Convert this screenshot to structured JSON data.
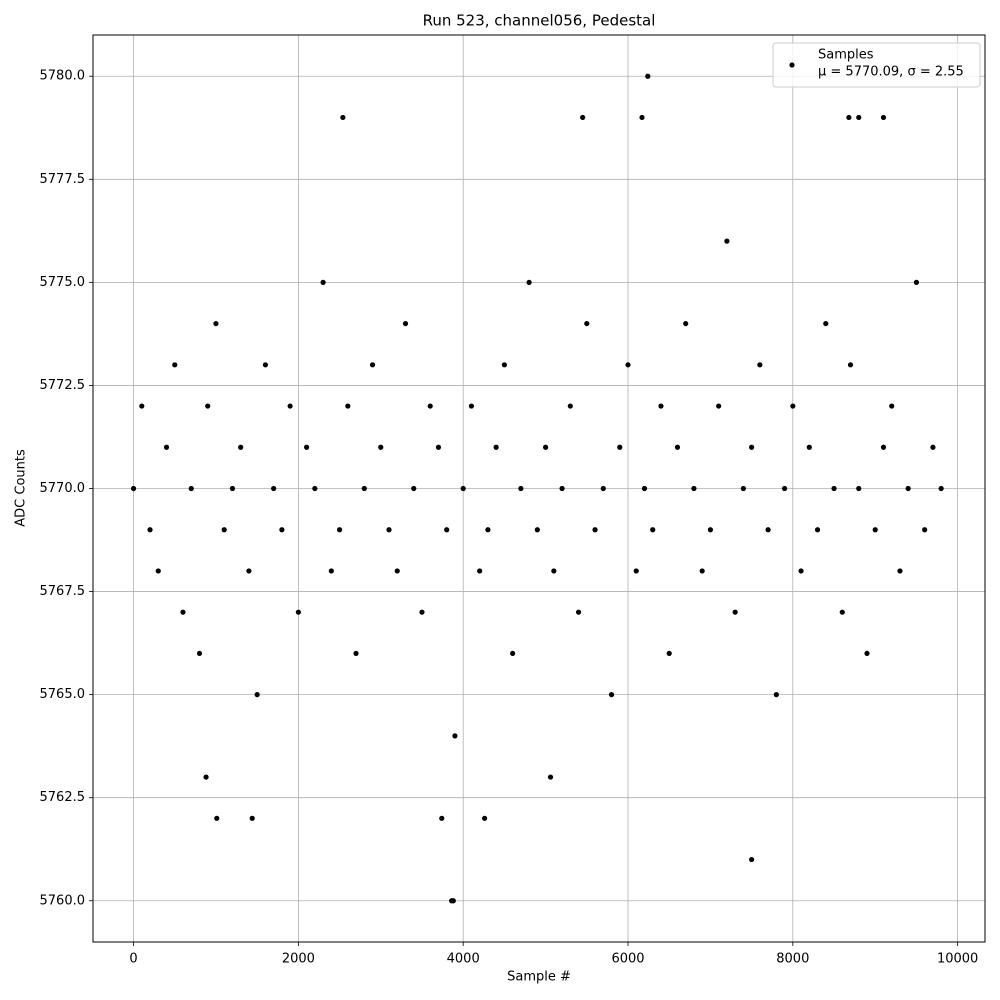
{
  "chart_data": {
    "type": "scatter",
    "title": "Run 523, channel056, Pedestal",
    "x_label": "Sample #",
    "y_label": "ADC Counts",
    "xlim": [
      -492,
      10332
    ],
    "ylim": [
      5759,
      5781
    ],
    "xticks": [
      0,
      2000,
      4000,
      6000,
      8000,
      10000
    ],
    "yticks": [
      {
        "value": 5760,
        "label": "5760.0"
      },
      {
        "value": 5762.5,
        "label": "5762.5"
      },
      {
        "value": 5765,
        "label": "5765.0"
      },
      {
        "value": 5767.5,
        "label": "5767.5"
      },
      {
        "value": 5770,
        "label": "5770.0"
      },
      {
        "value": 5772.5,
        "label": "5772.5"
      },
      {
        "value": 5775,
        "label": "5775.0"
      },
      {
        "value": 5777.5,
        "label": "5777.5"
      },
      {
        "value": 5780,
        "label": "5780.0"
      }
    ],
    "grid": true,
    "legend_position": "upper right",
    "legend_note": "μ = 5770.09, σ = 2.55",
    "series": [
      {
        "name": "Samples",
        "color": "#000000",
        "x": [
          0,
          100,
          200,
          300,
          400,
          500,
          600,
          700,
          800,
          900,
          1000,
          1100,
          1200,
          1300,
          1400,
          1500,
          1600,
          1700,
          1800,
          1900,
          2000,
          2100,
          2200,
          2300,
          2400,
          2500,
          2600,
          2700,
          2800,
          2900,
          3000,
          3100,
          3200,
          3300,
          3400,
          3500,
          3600,
          3700,
          3800,
          3900,
          4000,
          4100,
          4200,
          4300,
          4400,
          4500,
          4600,
          4700,
          4800,
          4900,
          5000,
          5100,
          5200,
          5300,
          5400,
          5500,
          5600,
          5700,
          5800,
          5900,
          6000,
          6100,
          6200,
          6300,
          6400,
          6500,
          6600,
          6700,
          6800,
          6900,
          7000,
          7100,
          7200,
          7300,
          7400,
          7500,
          7600,
          7700,
          7800,
          7900,
          8000,
          8100,
          8200,
          8300,
          8400,
          8500,
          8600,
          8700,
          8800,
          8900,
          9000,
          9100,
          9200,
          9300,
          9400,
          9500,
          9600,
          9700,
          9800,
          6240,
          2540,
          5450,
          6170,
          8680,
          8800,
          9100,
          3860,
          3880,
          7500,
          1010,
          1440,
          3740,
          4260,
          880,
          5060
        ],
        "values": [
          5770,
          5772,
          5769,
          5768,
          5771,
          5773,
          5767,
          5770,
          5766,
          5772,
          5774,
          5769,
          5770,
          5771,
          5768,
          5765,
          5773,
          5770,
          5769,
          5772,
          5767,
          5771,
          5770,
          5775,
          5768,
          5769,
          5772,
          5766,
          5770,
          5773,
          5771,
          5769,
          5768,
          5774,
          5770,
          5767,
          5772,
          5771,
          5769,
          5764,
          5770,
          5772,
          5768,
          5769,
          5771,
          5773,
          5766,
          5770,
          5775,
          5769,
          5771,
          5768,
          5770,
          5772,
          5767,
          5774,
          5769,
          5770,
          5765,
          5771,
          5773,
          5768,
          5770,
          5769,
          5772,
          5766,
          5771,
          5774,
          5770,
          5768,
          5769,
          5772,
          5776,
          5767,
          5770,
          5771,
          5773,
          5769,
          5765,
          5770,
          5772,
          5768,
          5771,
          5769,
          5774,
          5770,
          5767,
          5773,
          5770,
          5766,
          5769,
          5771,
          5772,
          5768,
          5770,
          5775,
          5769,
          5771,
          5770,
          5780,
          5779,
          5779,
          5779,
          5779,
          5779,
          5779,
          5760,
          5760,
          5761,
          5762,
          5762,
          5762,
          5762,
          5763,
          5763
        ]
      }
    ]
  }
}
